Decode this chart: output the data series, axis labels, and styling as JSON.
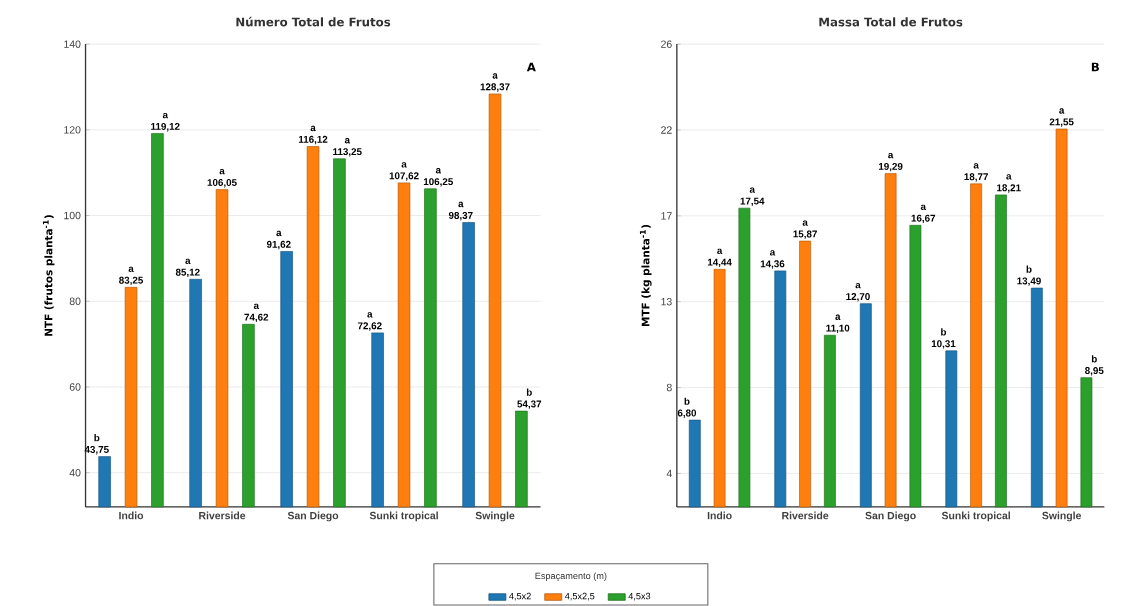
{
  "chart_data": [
    {
      "type": "bar",
      "title": "Número Total de Frutos",
      "ylabel": "NTF (frutos planta$^{-1}$)",
      "categories": [
        "Indio",
        "Riverside",
        "San Diego",
        "Sunki tropical",
        "Swingle"
      ],
      "series": [
        {
          "name": "4,5x2",
          "color": "#1f77b4",
          "values": [
            43.75,
            85.12,
            91.62,
            72.62,
            98.37
          ],
          "value_labels": [
            "43,75",
            "85,12",
            "91,62",
            "72,62",
            "98,37"
          ]
        },
        {
          "name": "4,5x2,5",
          "color": "#ff7f0e",
          "values": [
            83.25,
            106.05,
            116.12,
            107.62,
            128.37
          ],
          "value_labels": [
            "83,25",
            "106,05",
            "116,12",
            "107,62",
            "128,37"
          ]
        },
        {
          "name": "4,5x3",
          "color": "#2ca02c",
          "values": [
            119.12,
            74.62,
            113.25,
            106.25,
            54.37
          ],
          "value_labels": [
            "119,12",
            "74,62",
            "113,25",
            "106,25",
            "54,37"
          ]
        }
      ],
      "ylim": [
        32,
        140
      ],
      "yticks": [
        40,
        60,
        80,
        100,
        120,
        140
      ],
      "grid": "y",
      "legend": "bottom",
      "legend_title": "Espaçamento (m)",
      "annotations": [
        "A",
        "b",
        "a",
        "a",
        "a",
        "a",
        "a",
        "a",
        "a",
        "a",
        "a",
        "a",
        "a",
        "a",
        "a",
        "b"
      ]
    },
    {
      "type": "bar",
      "title": "Massa Total de Frutos",
      "ylabel": "MTF (kg planta$^{-1}$)",
      "categories": [
        "Indio",
        "Riverside",
        "San Diego",
        "Sunki tropical",
        "Swingle"
      ],
      "series": [
        {
          "color": "#1f77b4",
          "values": [
            6.8,
            14.36,
            12.7,
            10.31,
            13.49
          ],
          "value_labels": [
            "6,80",
            "14,36",
            "12,70",
            "10,31",
            "13,49"
          ]
        },
        {
          "color": "#ff7f0e",
          "values": [
            14.44,
            15.87,
            19.29,
            18.77,
            21.55
          ],
          "value_labels": [
            "14,44",
            "15,87",
            "19,29",
            "18,77",
            "21,55"
          ]
        },
        {
          "color": "#2ca02c",
          "values": [
            17.54,
            11.1,
            16.67,
            18.21,
            8.95
          ],
          "value_labels": [
            "17,54",
            "11,10",
            "16,67",
            "18,21",
            "8,95"
          ]
        }
      ],
      "ylim": [
        2.4,
        25.85
      ],
      "yticks": [
        {
          "value": 4.1,
          "label": "4"
        },
        {
          "value": 8.45,
          "label": "8"
        },
        {
          "value": 12.8,
          "label": "13"
        },
        {
          "value": 17.15,
          "label": "17"
        },
        {
          "value": 21.5,
          "label": "22"
        },
        {
          "value": 25.85,
          "label": "26"
        }
      ],
      "grid": "y",
      "annotations": [
        "B",
        "b",
        "a",
        "a",
        "b",
        "b",
        "a",
        "a",
        "a",
        "a",
        "a",
        "a",
        "a",
        "a",
        "a",
        "b"
      ]
    }
  ]
}
